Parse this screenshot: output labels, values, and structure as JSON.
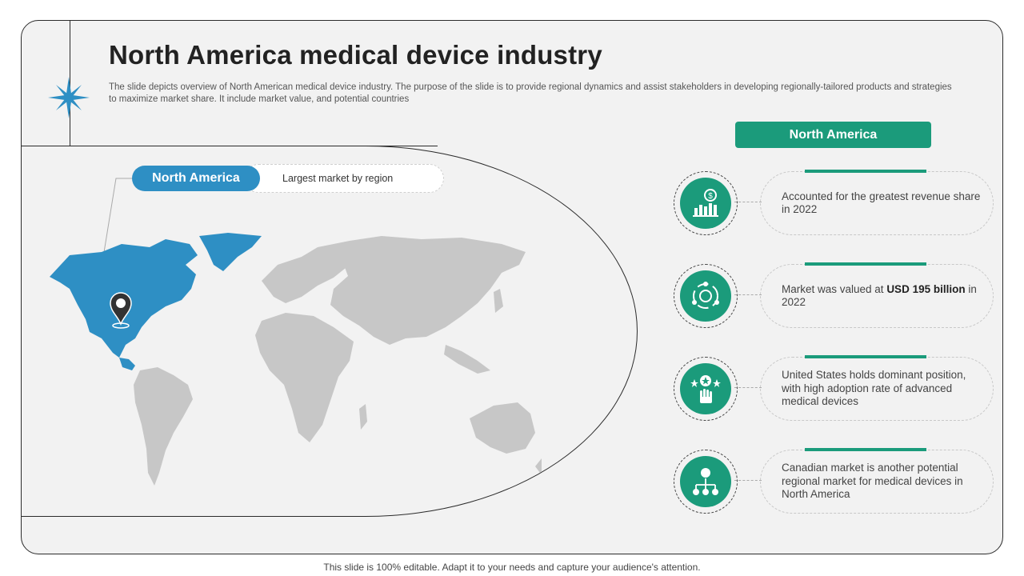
{
  "title": "North America medical device industry",
  "subtitle": "The slide depicts overview of North American medical device industry. The purpose of the slide is to provide regional dynamics and assist stakeholders in developing regionally-tailored products and strategies to maximize market share. It include market value, and potential countries",
  "map_label": {
    "region": "North America",
    "description": "Largest market by region"
  },
  "panel": {
    "header": "North America",
    "items": [
      {
        "icon": "revenue-chart-icon",
        "text": "Accounted for the greatest revenue share in 2022"
      },
      {
        "icon": "market-cycle-icon",
        "text_before": "Market was valued at ",
        "highlight": "USD 195 billion",
        "text_after": " in 2022"
      },
      {
        "icon": "hand-star-icon",
        "text": "United States holds dominant position, with high adoption rate of advanced medical devices"
      },
      {
        "icon": "person-network-icon",
        "text": "Canadian market is another potential regional market for medical devices in North America"
      }
    ]
  },
  "footer": "This slide is 100% editable. Adapt it to your needs and capture your audience's attention.",
  "colors": {
    "accent_green": "#1b9b7b",
    "accent_blue": "#2e8fc4",
    "map_gray": "#c7c7c7",
    "background": "#f2f2f2"
  }
}
